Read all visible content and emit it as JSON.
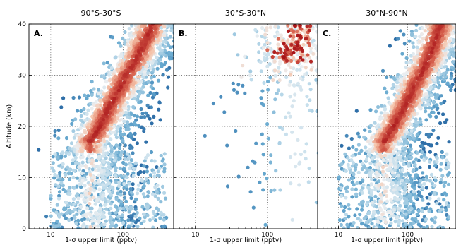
{
  "chart_data": [
    {
      "type": "scatter",
      "title": "90°S-30°S",
      "panel_label": "A.",
      "xlabel": "1-σ upper limit (pptv)",
      "ylabel": "Altitude (km)",
      "xscale": "log",
      "xlim": [
        5,
        500
      ],
      "ylim": [
        0,
        40
      ],
      "xticks": [
        10,
        100
      ],
      "yticks": [
        0,
        10,
        20,
        30,
        40
      ],
      "grid": true,
      "colormap": "RdBu_r (point density)",
      "colors": {
        "dense": "#a50f15",
        "mid": "#f3c6b3",
        "sparse": "#2f6fa8"
      },
      "density_band": {
        "altitude_km": [
          17,
          24,
          30,
          36,
          40
        ],
        "x_center_pptv": [
          35,
          65,
          110,
          190,
          260
        ]
      },
      "estimated_points": true
    },
    {
      "type": "scatter",
      "title": "30°S-30°N",
      "panel_label": "B.",
      "xlabel": "1-σ upper limit (pptv)",
      "ylabel": "",
      "xscale": "log",
      "xlim": [
        5,
        500
      ],
      "ylim": [
        0,
        40
      ],
      "xticks": [
        10,
        100
      ],
      "yticks": [
        0,
        10,
        20,
        30,
        40
      ],
      "grid": true,
      "colormap": "RdBu_r (point density)",
      "colors": {
        "dense": "#a50f15",
        "mid": "#f3c6b3",
        "sparse": "#2f6fa8"
      },
      "density_band": {
        "altitude_km": [
          34,
          36,
          38,
          40
        ],
        "x_center_pptv": [
          200,
          230,
          270,
          300
        ]
      },
      "estimated_points": true
    },
    {
      "type": "scatter",
      "title": "30°N-90°N",
      "panel_label": "C.",
      "xlabel": "1-σ upper limit (pptv)",
      "ylabel": "",
      "xscale": "log",
      "xlim": [
        5,
        500
      ],
      "ylim": [
        0,
        40
      ],
      "xticks": [
        10,
        100
      ],
      "yticks": [
        0,
        10,
        20,
        30,
        40
      ],
      "grid": true,
      "colormap": "RdBu_r (point density)",
      "colors": {
        "dense": "#a50f15",
        "mid": "#f3c6b3",
        "sparse": "#2f6fa8"
      },
      "density_band": {
        "altitude_km": [
          17,
          22,
          28,
          34,
          40
        ],
        "x_center_pptv": [
          45,
          75,
          125,
          210,
          300
        ]
      },
      "estimated_points": true
    }
  ]
}
